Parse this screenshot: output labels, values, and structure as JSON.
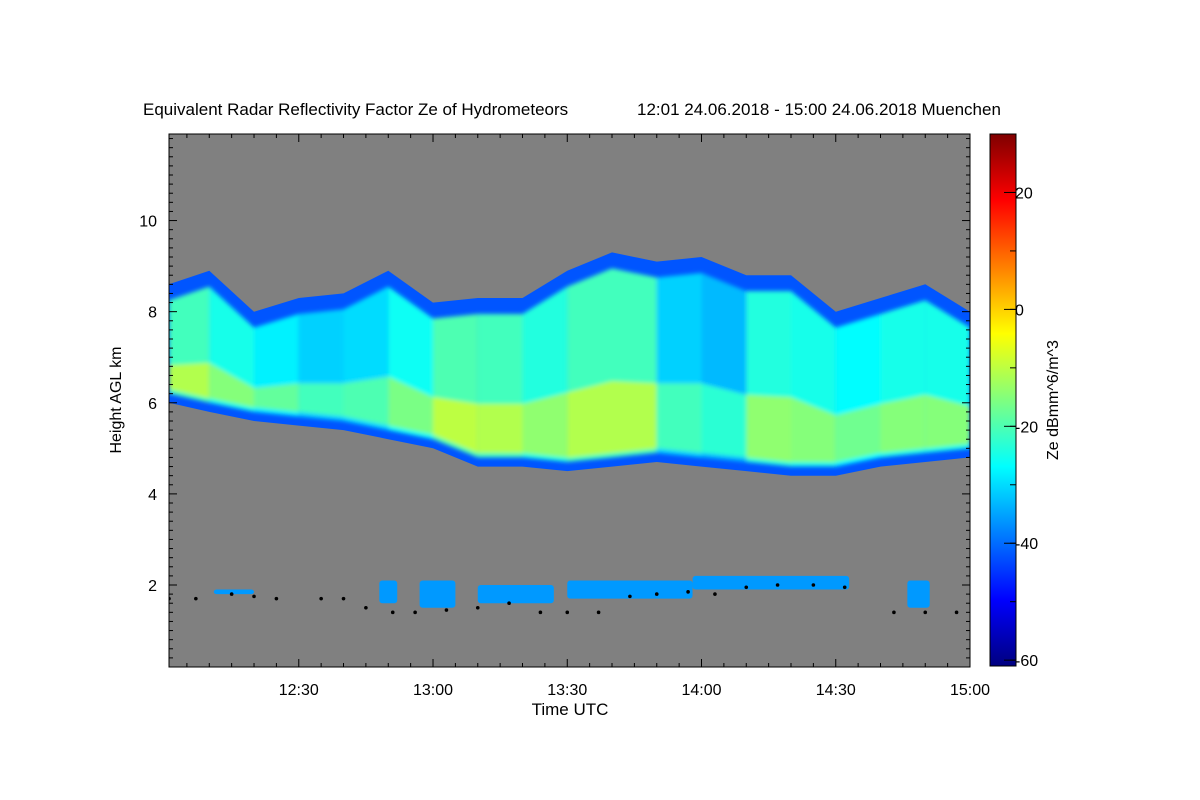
{
  "chart_data": {
    "type": "heatmap",
    "title": "Equivalent Radar Reflectivity Factor Ze of Hydrometeors",
    "subtitle": "12:01 24.06.2018 - 15:00 24.06.2018 Muenchen",
    "xlabel": "Time UTC",
    "ylabel": "Height AGL km",
    "xlim": [
      "12:01",
      "15:00"
    ],
    "ylim": [
      0.2,
      11.9
    ],
    "x_ticks": [
      "12:30",
      "13:00",
      "13:30",
      "14:00",
      "14:30",
      "15:00"
    ],
    "y_ticks": [
      2,
      4,
      6,
      8,
      10
    ],
    "colorbar": {
      "label": "Ze dBmm^6/m^3",
      "range": [
        -61,
        30
      ],
      "ticks": [
        20,
        0,
        -20,
        -40,
        -60
      ],
      "colormap": "jet"
    },
    "background_color": "#808080",
    "upper_layer": {
      "time": [
        "12:01",
        "12:10",
        "12:20",
        "12:30",
        "12:40",
        "12:50",
        "13:00",
        "13:10",
        "13:20",
        "13:30",
        "13:40",
        "13:50",
        "14:00",
        "14:10",
        "14:20",
        "14:30",
        "14:40",
        "14:50",
        "15:00"
      ],
      "base_km": [
        6.0,
        5.8,
        5.6,
        5.5,
        5.4,
        5.2,
        5.0,
        4.6,
        4.6,
        4.5,
        4.6,
        4.7,
        4.6,
        4.5,
        4.4,
        4.4,
        4.6,
        4.7,
        4.8
      ],
      "top_km": [
        8.6,
        8.9,
        8.0,
        8.3,
        8.4,
        8.9,
        8.2,
        8.3,
        8.3,
        8.9,
        9.3,
        9.1,
        9.2,
        8.8,
        8.8,
        8.0,
        8.3,
        8.6,
        8.0
      ],
      "core_ze": [
        -8,
        -14,
        -16,
        -20,
        -22,
        -18,
        -14,
        -6,
        -16,
        -12,
        -10,
        -12,
        -30,
        -16,
        -12,
        -18,
        -16,
        -14,
        -16
      ]
    },
    "low_clouds": [
      {
        "start": "12:11",
        "end": "12:20",
        "base_km": 1.8,
        "top_km": 1.9
      },
      {
        "start": "12:48",
        "end": "12:52",
        "base_km": 1.6,
        "top_km": 2.1
      },
      {
        "start": "12:57",
        "end": "13:05",
        "base_km": 1.5,
        "top_km": 2.1
      },
      {
        "start": "13:10",
        "end": "13:27",
        "base_km": 1.6,
        "top_km": 2.0
      },
      {
        "start": "13:30",
        "end": "13:58",
        "base_km": 1.7,
        "top_km": 2.1
      },
      {
        "start": "13:58",
        "end": "14:33",
        "base_km": 1.9,
        "top_km": 2.2
      },
      {
        "start": "14:46",
        "end": "14:51",
        "base_km": 1.5,
        "top_km": 2.1
      }
    ],
    "cloud_base_points": {
      "time": [
        "12:01",
        "12:07",
        "12:15",
        "12:20",
        "12:25",
        "12:35",
        "12:40",
        "12:45",
        "12:51",
        "12:56",
        "13:03",
        "13:10",
        "13:17",
        "13:24",
        "13:30",
        "13:37",
        "13:44",
        "13:50",
        "13:57",
        "14:03",
        "14:10",
        "14:17",
        "14:25",
        "14:32",
        "14:43",
        "14:50",
        "14:57"
      ],
      "height_km": [
        1.7,
        1.7,
        1.8,
        1.75,
        1.7,
        1.7,
        1.7,
        1.5,
        1.4,
        1.4,
        1.45,
        1.5,
        1.6,
        1.4,
        1.4,
        1.4,
        1.75,
        1.8,
        1.85,
        1.8,
        1.95,
        2.0,
        2.0,
        1.95,
        1.4,
        1.4,
        1.4
      ]
    }
  }
}
